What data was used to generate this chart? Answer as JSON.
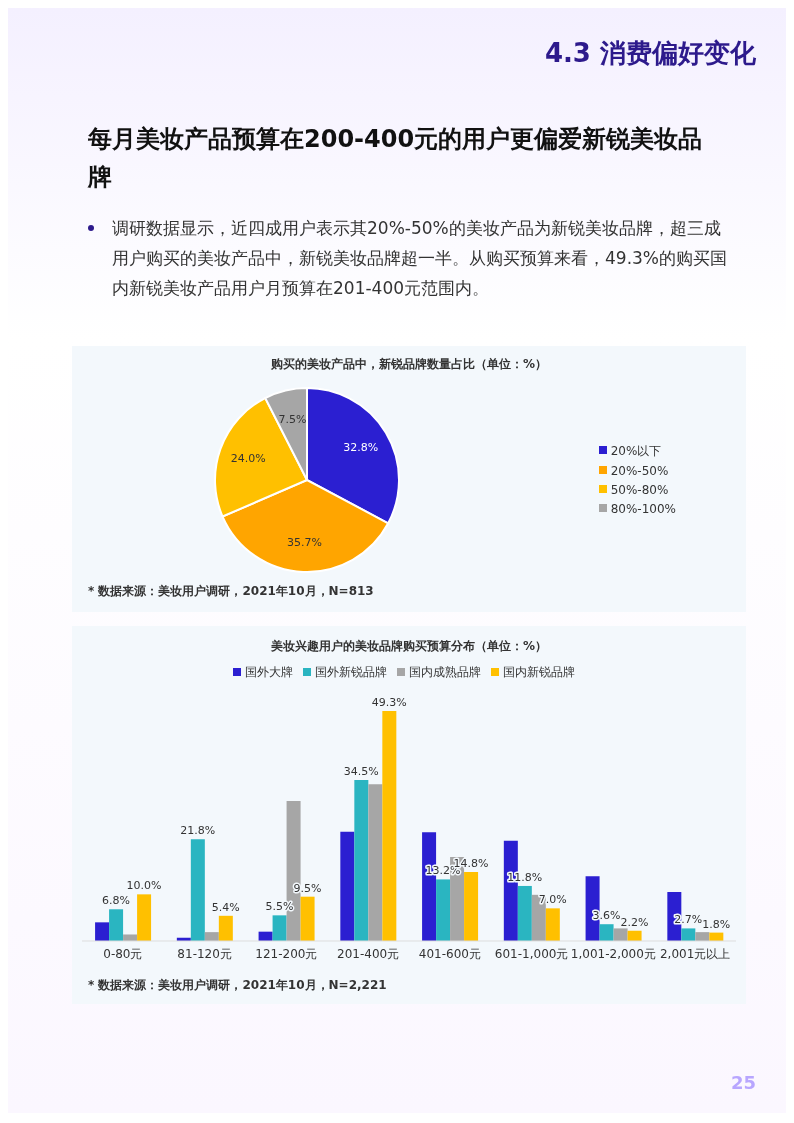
{
  "chart_data": [
    {
      "type": "pie",
      "title": "购买的美妆产品中，新锐品牌数量占比（单位：%）",
      "categories": [
        "20%以下",
        "20%-50%",
        "50%-80%",
        "80%-100%"
      ],
      "values": [
        32.8,
        35.7,
        24.0,
        7.5
      ],
      "value_labels": [
        "32.8%",
        "35.7%",
        "24.0%",
        "7.5%"
      ],
      "colors": [
        "#2b1fd1",
        "#ffa500",
        "#ffc000",
        "#a6a6a6"
      ],
      "legend": "right",
      "annotations": [
        "4.3 消费偏好变化",
        "每月美妆产品预算在200-400元的用户更偏爱新锐美妆品牌",
        "调研数据显示，近四成用户表示其20%-50%的美妆产品为新锐美妆品牌，超三成用户购买的美妆产品中，新锐美妆品牌超一半。从购买预算来看，49.3%的购买国内新锐美妆产品用户月预算在201-400元范围内。",
        "* 数据来源：美妆用户调研，2021年10月，N=813"
      ]
    },
    {
      "type": "bar",
      "title": "美妆兴趣用户的美妆品牌购买预算分布（单位：%）",
      "categories": [
        "0-80元",
        "81-120元",
        "121-200元",
        "201-400元",
        "401-600元",
        "601-1,000元",
        "1,001-2,000元",
        "2,001元以上"
      ],
      "series": [
        {
          "name": "国外大牌",
          "color": "#2b1fd1",
          "values": [
            4.0,
            0.7,
            2.0,
            23.4,
            23.3,
            21.5,
            13.9,
            10.5
          ]
        },
        {
          "name": "国外新锐品牌",
          "color": "#2ab5c1",
          "values": [
            6.8,
            21.8,
            5.5,
            34.5,
            13.2,
            11.8,
            3.6,
            2.7
          ],
          "value_labels": [
            "6.8%",
            "21.8%",
            "5.5%",
            "34.5%",
            "13.2%",
            "11.8%",
            "3.6%",
            "2.7%"
          ]
        },
        {
          "name": "国内成熟品牌",
          "color": "#a6a6a6",
          "values": [
            1.4,
            1.9,
            30.0,
            33.6,
            18.0,
            9.9,
            2.7,
            1.9
          ]
        },
        {
          "name": "国内新锐品牌",
          "color": "#ffc000",
          "values": [
            10.0,
            5.4,
            9.5,
            49.3,
            14.8,
            7.0,
            2.2,
            1.8
          ],
          "value_labels": [
            "10.0%",
            "5.4%",
            "9.5%",
            "49.3%",
            "14.8%",
            "7.0%",
            "2.2%",
            "1.8%"
          ]
        }
      ],
      "legend": "top",
      "annotations": [
        "* 数据来源：美妆用户调研，2021年10月，N=2,221",
        "25"
      ]
    }
  ]
}
